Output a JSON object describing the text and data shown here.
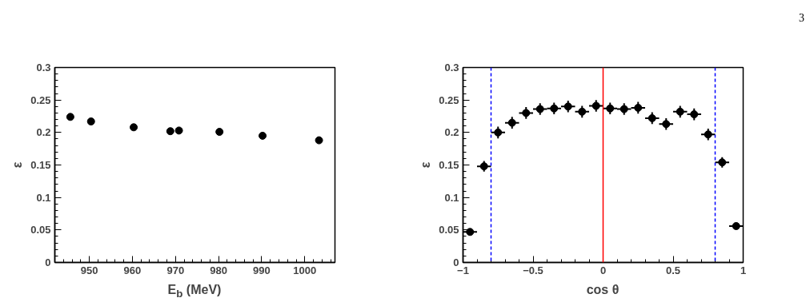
{
  "chart_data": [
    {
      "type": "scatter",
      "xlabel": "E$_{b}$ (MeV)",
      "ylabel": "ε",
      "xlim": [
        942,
        1007
      ],
      "ylim": [
        0,
        0.3
      ],
      "xticks": [
        950,
        960,
        970,
        980,
        990,
        1000
      ],
      "yticks": [
        0,
        0.05,
        0.1,
        0.15,
        0.2,
        0.25,
        0.3
      ],
      "marker": "circle",
      "grid": false,
      "series": [
        {
          "color": "#000000",
          "x": [
            945.6,
            950.4,
            960.3,
            968.8,
            970.8,
            980.2,
            990.2,
            1003.3
          ],
          "values": [
            0.224,
            0.217,
            0.208,
            0.202,
            0.203,
            0.201,
            0.195,
            0.188
          ]
        }
      ]
    },
    {
      "type": "scatter",
      "xlabel": "cos θ",
      "ylabel": "ε",
      "xlim": [
        -1,
        1
      ],
      "ylim": [
        0,
        0.3
      ],
      "xticks": [
        {
          "value": -1,
          "label": "−1"
        },
        {
          "value": -0.5,
          "label": "−0.5"
        },
        0,
        0.5,
        1
      ],
      "yticks": [
        0,
        0.05,
        0.1,
        0.15,
        0.2,
        0.25,
        0.3
      ],
      "marker": "circle",
      "grid": false,
      "annotations": [
        "3"
      ],
      "ref_lines": [
        {
          "axis": "x",
          "value": -0.8,
          "color": "#0000ff",
          "line_style": "dashed"
        },
        {
          "axis": "x",
          "value": 0.8,
          "color": "#0000ff",
          "line_style": "dashed"
        },
        {
          "axis": "x",
          "value": 0,
          "color": "#ff0000",
          "line_style": "solid"
        }
      ],
      "series": [
        {
          "color": "#000000",
          "x": [
            -0.95,
            -0.85,
            -0.75,
            -0.65,
            -0.55,
            -0.45,
            -0.35,
            -0.25,
            -0.15,
            -0.05,
            0.05,
            0.15,
            0.25,
            0.35,
            0.45,
            0.55,
            0.65,
            0.75,
            0.85,
            0.95
          ],
          "values": [
            0.047,
            0.148,
            0.2,
            0.215,
            0.23,
            0.236,
            0.237,
            0.24,
            0.232,
            0.241,
            0.237,
            0.236,
            0.238,
            0.222,
            0.213,
            0.232,
            0.228,
            0.197,
            0.154,
            0.056
          ],
          "errors": [
            0.003,
            0.008,
            0.009,
            0.009,
            0.009,
            0.009,
            0.009,
            0.009,
            0.009,
            0.009,
            0.009,
            0.009,
            0.009,
            0.009,
            0.009,
            0.009,
            0.009,
            0.009,
            0.008,
            0.003
          ],
          "xerrors": [
            0.05,
            0.05,
            0.05,
            0.05,
            0.05,
            0.05,
            0.05,
            0.05,
            0.05,
            0.05,
            0.05,
            0.05,
            0.05,
            0.05,
            0.05,
            0.05,
            0.05,
            0.05,
            0.05,
            0.05
          ]
        }
      ]
    }
  ]
}
